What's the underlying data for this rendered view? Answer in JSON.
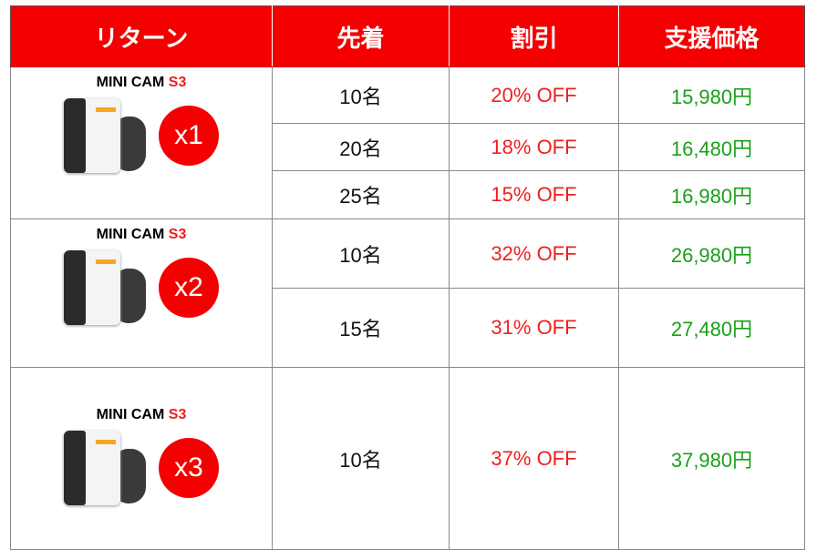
{
  "header": {
    "reward": "リターン",
    "first_come": "先着",
    "discount": "割引",
    "support_price": "支援価格"
  },
  "groups": [
    {
      "product": "MINI CAM ",
      "model": "S3",
      "qty": "x1",
      "rows": [
        {
          "slots": "10名",
          "discount": "20% OFF",
          "price": "15,980円"
        },
        {
          "slots": "20名",
          "discount": "18% OFF",
          "price": "16,480円"
        },
        {
          "slots": "25名",
          "discount": "15% OFF",
          "price": "16,980円"
        }
      ]
    },
    {
      "product": "MINI CAM ",
      "model": "S3",
      "qty": "x2",
      "rows": [
        {
          "slots": "10名",
          "discount": "32% OFF",
          "price": "26,980円"
        },
        {
          "slots": "15名",
          "discount": "31% OFF",
          "price": "27,480円"
        }
      ]
    },
    {
      "product": "MINI CAM ",
      "model": "S3",
      "qty": "x3",
      "rows": [
        {
          "slots": "10名",
          "discount": "37% OFF",
          "price": "37,980円"
        }
      ]
    }
  ],
  "colors": {
    "header_bg": "#f40000",
    "discount": "#f01e1e",
    "price": "#1aa01a"
  }
}
